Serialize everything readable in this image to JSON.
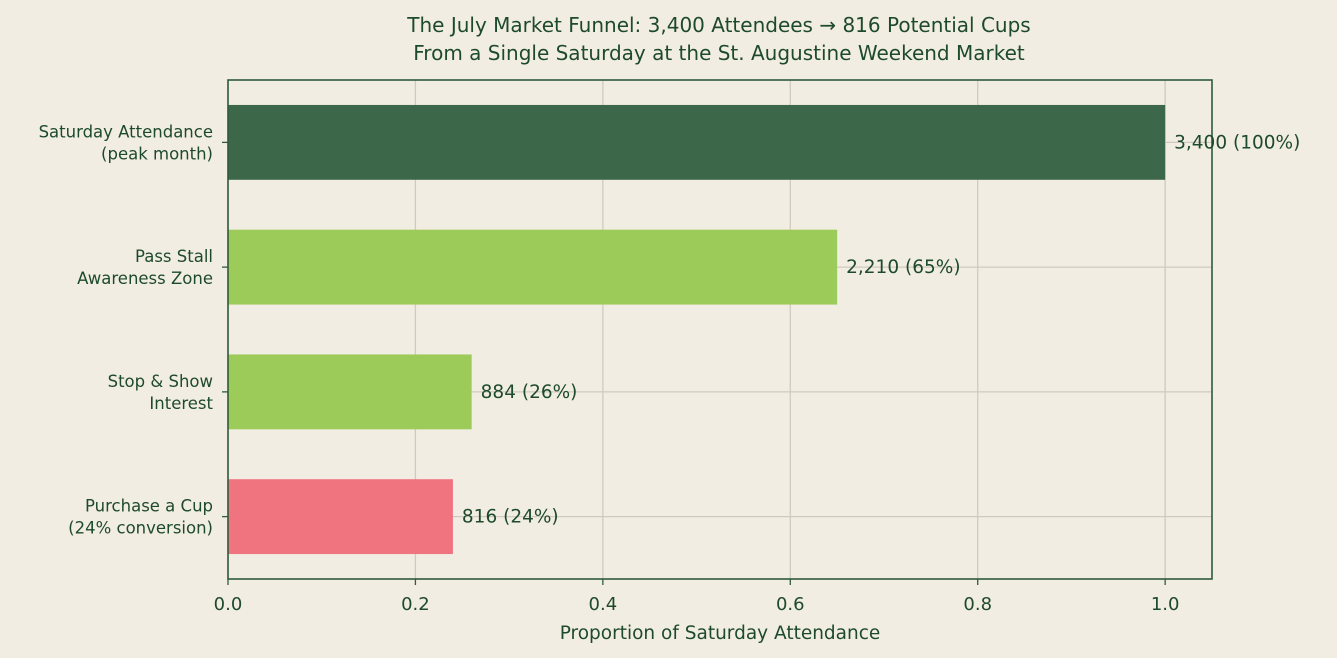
{
  "chart_data": {
    "type": "bar",
    "orientation": "horizontal",
    "title": "The July Market Funnel: 3,400 Attendees → 816 Potential Cups",
    "subtitle": "From a Single Saturday at the St. Augustine Weekend Market",
    "xlabel": "Proportion of Saturday Attendance",
    "ylabel": "",
    "xlim": [
      0,
      1.05
    ],
    "xticks": [
      "0.0",
      "0.2",
      "0.4",
      "0.6",
      "0.8",
      "1.0"
    ],
    "grid": true,
    "categories": [
      [
        "Saturday Attendance",
        "(peak month)"
      ],
      [
        "Pass Stall",
        "Awareness Zone"
      ],
      [
        "Stop & Show",
        "Interest"
      ],
      [
        "Purchase a Cup",
        "(24% conversion)"
      ]
    ],
    "values": [
      1.0,
      0.65,
      0.26,
      0.24
    ],
    "data_labels": [
      "3,400  (100%)",
      "2,210  (65%)",
      "884  (26%)",
      "816  (24%)"
    ],
    "colors": [
      "#3d6749",
      "#9dcb5a",
      "#9dcb5a",
      "#f07480"
    ]
  }
}
